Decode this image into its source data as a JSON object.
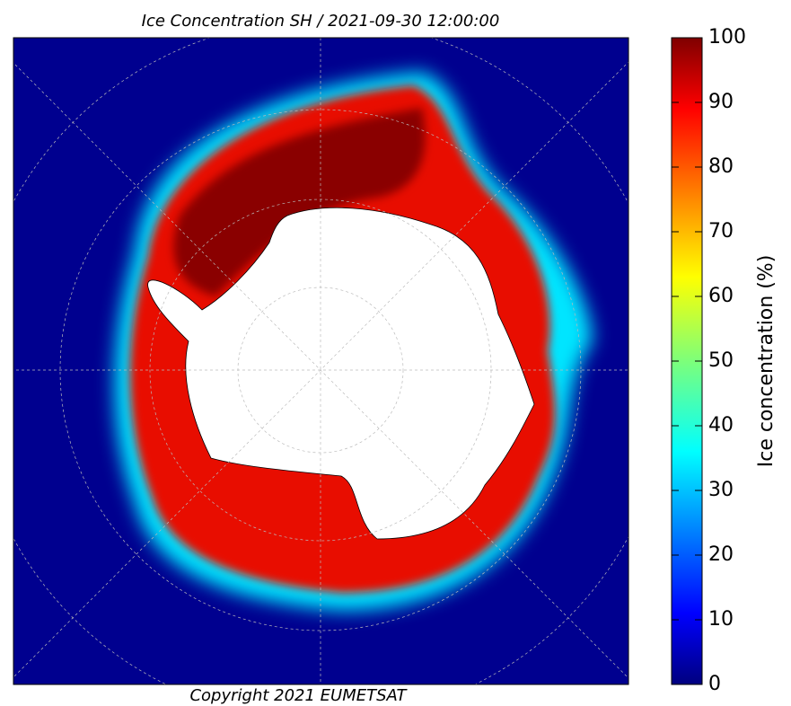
{
  "title": "Ice Concentration SH / 2021-09-30 12:00:00",
  "copyright": "Copyright 2021 EUMETSAT",
  "colorbar": {
    "label": "Ice concentration (%)",
    "lim": [
      0,
      100
    ],
    "ticks": [
      0,
      10,
      20,
      30,
      40,
      50,
      60,
      70,
      80,
      90,
      100
    ]
  }
}
